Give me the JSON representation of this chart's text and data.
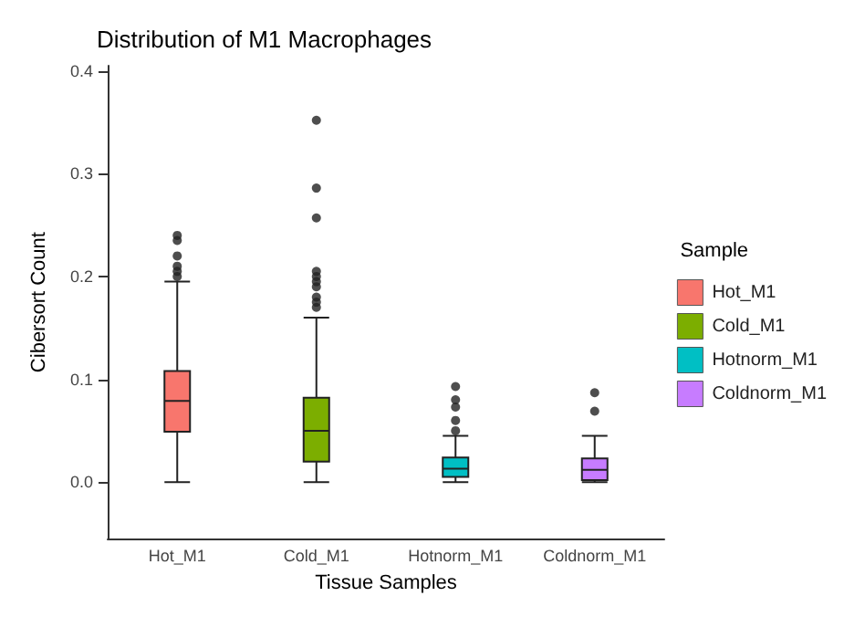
{
  "chart_data": {
    "type": "box",
    "title": "Distribution of M1 Macrophages",
    "xlabel": "Tissue Samples",
    "ylabel": "Cibersort Count",
    "legend_title": "Sample",
    "legend": "right",
    "grid": false,
    "categories": [
      "Hot_M1",
      "Cold_M1",
      "Hotnorm_M1",
      "Coldnorm_M1"
    ],
    "series": [
      {
        "name": "Hot_M1",
        "color": "#f8766d",
        "boxes": [
          {
            "low": 0.0,
            "q1": 0.049,
            "median": 0.079,
            "q3": 0.108,
            "high": 0.195,
            "outliers": [
              0.2,
              0.205,
              0.21,
              0.22,
              0.235,
              0.24
            ]
          },
          null,
          null,
          null
        ]
      },
      {
        "name": "Cold_M1",
        "color": "#7cae00",
        "boxes": [
          null,
          {
            "low": 0.0,
            "q1": 0.02,
            "median": 0.05,
            "q3": 0.082,
            "high": 0.16,
            "outliers": [
              0.17,
              0.175,
              0.18,
              0.19,
              0.195,
              0.2,
              0.205,
              0.257,
              0.286,
              0.352
            ]
          },
          null,
          null
        ]
      },
      {
        "name": "Hotnorm_M1",
        "color": "#00bfc4",
        "boxes": [
          null,
          null,
          {
            "low": 0.0,
            "q1": 0.005,
            "median": 0.013,
            "q3": 0.024,
            "high": 0.045,
            "outliers": [
              0.05,
              0.06,
              0.073,
              0.08,
              0.093
            ]
          },
          null
        ]
      },
      {
        "name": "Coldnorm_M1",
        "color": "#c77cff",
        "boxes": [
          null,
          null,
          null,
          {
            "low": 0.0,
            "q1": 0.002,
            "median": 0.012,
            "q3": 0.023,
            "high": 0.045,
            "outliers": [
              0.069,
              0.087
            ]
          }
        ]
      }
    ],
    "ylim": [
      -0.055,
      0.405
    ],
    "yticks": [
      {
        "value": 0,
        "label": "0.0"
      },
      0.1,
      0.2,
      0.3,
      0.4
    ]
  }
}
